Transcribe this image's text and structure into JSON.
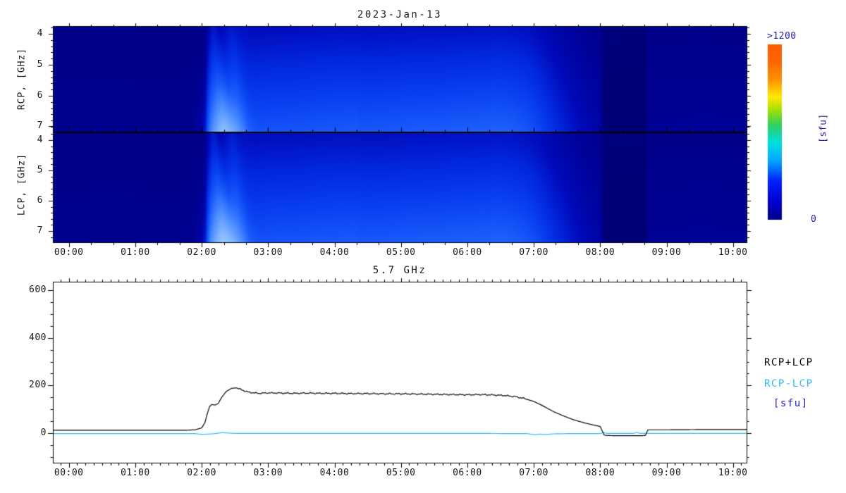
{
  "figure": {
    "background": "#FFFFFF"
  },
  "chart_data": [
    {
      "type": "heatmap",
      "title": "2023-Jan-13",
      "panels": [
        {
          "ylabel": "RCP, [GHz]",
          "y_ticks_ghz": [
            4,
            5,
            6,
            7
          ]
        },
        {
          "ylabel": "LCP, [GHz]",
          "y_ticks_ghz": [
            4,
            5,
            6,
            7
          ]
        }
      ],
      "y_range_ghz": [
        3.75,
        7.25
      ],
      "x_tick_labels": [
        "00:00",
        "01:00",
        "02:00",
        "03:00",
        "04:00",
        "05:00",
        "06:00",
        "07:00",
        "08:00",
        "09:00",
        "10:00"
      ],
      "x_range_hours": [
        -0.241,
        10.215
      ],
      "colorbar": {
        "max_label": ">1200",
        "min_label": "0",
        "unit_label": "[sfu]",
        "label_color": "#2222AA",
        "stops": [
          [
            0.0,
            "#00008B"
          ],
          [
            0.1,
            "#0000CD"
          ],
          [
            0.22,
            "#0020FF"
          ],
          [
            0.34,
            "#00AAFF"
          ],
          [
            0.44,
            "#00E0E0"
          ],
          [
            0.54,
            "#30D060"
          ],
          [
            0.63,
            "#A8E000"
          ],
          [
            0.7,
            "#FFE800"
          ],
          [
            0.8,
            "#FF9000"
          ],
          [
            0.9,
            "#FF6600"
          ],
          [
            1.0,
            "#FF5C00"
          ]
        ]
      },
      "derived_from": "chart_data[1].series[0]"
    },
    {
      "type": "line",
      "title": "5.7 GHz",
      "x_tick_labels": [
        "00:00",
        "01:00",
        "02:00",
        "03:00",
        "04:00",
        "05:00",
        "06:00",
        "07:00",
        "08:00",
        "09:00",
        "10:00"
      ],
      "x_range_hours": [
        -0.241,
        10.215
      ],
      "y_ticks": [
        0,
        200,
        400,
        600
      ],
      "y_range": [
        -127,
        636
      ],
      "unit": "sfu",
      "series": [
        {
          "name": "RCP+LCP",
          "color": "#000000",
          "points": [
            [
              -0.24,
              12
            ],
            [
              1.0,
              12
            ],
            [
              1.75,
              12
            ],
            [
              1.9,
              14
            ],
            [
              2.0,
              22
            ],
            [
              2.05,
              45
            ],
            [
              2.08,
              78
            ],
            [
              2.12,
              112
            ],
            [
              2.15,
              120
            ],
            [
              2.2,
              118
            ],
            [
              2.25,
              125
            ],
            [
              2.3,
              150
            ],
            [
              2.37,
              175
            ],
            [
              2.45,
              188
            ],
            [
              2.52,
              190
            ],
            [
              2.6,
              182
            ],
            [
              2.7,
              172
            ],
            [
              2.85,
              167
            ],
            [
              3.0,
              169
            ],
            [
              3.2,
              168
            ],
            [
              3.4,
              167
            ],
            [
              3.6,
              168
            ],
            [
              3.8,
              167
            ],
            [
              4.0,
              167
            ],
            [
              4.25,
              166
            ],
            [
              4.5,
              166
            ],
            [
              4.75,
              165
            ],
            [
              5.0,
              165
            ],
            [
              5.25,
              164
            ],
            [
              5.5,
              163
            ],
            [
              5.75,
              162
            ],
            [
              6.0,
              161
            ],
            [
              6.2,
              162
            ],
            [
              6.4,
              160
            ],
            [
              6.55,
              158
            ],
            [
              6.7,
              154
            ],
            [
              6.85,
              146
            ],
            [
              7.0,
              133
            ],
            [
              7.1,
              120
            ],
            [
              7.2,
              105
            ],
            [
              7.3,
              90
            ],
            [
              7.45,
              72
            ],
            [
              7.6,
              56
            ],
            [
              7.75,
              44
            ],
            [
              7.9,
              34
            ],
            [
              8.0,
              28
            ],
            [
              8.03,
              10
            ],
            [
              8.06,
              -8
            ],
            [
              8.1,
              -10
            ],
            [
              8.3,
              -11
            ],
            [
              8.6,
              -11
            ],
            [
              8.68,
              -10
            ],
            [
              8.72,
              14
            ],
            [
              9.0,
              14
            ],
            [
              9.5,
              15
            ],
            [
              10.0,
              15
            ],
            [
              10.22,
              15
            ]
          ]
        },
        {
          "name": "RCP-LCP",
          "color": "#2FBCF2",
          "points": [
            [
              -0.24,
              -2
            ],
            [
              1.9,
              -2
            ],
            [
              2.0,
              -5
            ],
            [
              2.1,
              -4
            ],
            [
              2.2,
              -2
            ],
            [
              2.3,
              2
            ],
            [
              2.5,
              -1
            ],
            [
              3.0,
              -1
            ],
            [
              4.0,
              -1
            ],
            [
              5.0,
              -1
            ],
            [
              6.0,
              -1
            ],
            [
              6.9,
              -2
            ],
            [
              7.0,
              -6
            ],
            [
              7.1,
              -4
            ],
            [
              7.15,
              -6
            ],
            [
              7.3,
              -3
            ],
            [
              7.5,
              -2
            ],
            [
              8.0,
              -2
            ],
            [
              8.05,
              3
            ],
            [
              8.1,
              -1
            ],
            [
              8.5,
              -1
            ],
            [
              8.55,
              3
            ],
            [
              8.6,
              -1
            ],
            [
              9.0,
              -1
            ],
            [
              10.22,
              -1
            ]
          ]
        }
      ],
      "legend": {
        "unit_label": "[sfu]",
        "unit_color": "#2222BB"
      }
    }
  ]
}
